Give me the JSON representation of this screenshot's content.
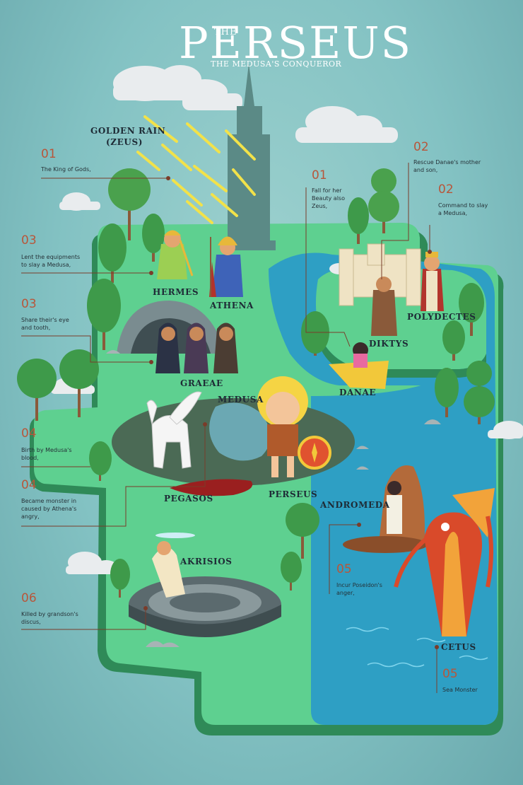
{
  "title": {
    "the": "THE",
    "main": "PERSEUS",
    "subtitle": "THE MEDUSA'S CONQUEROR"
  },
  "labels": {
    "golden_rain": "GOLDEN RAIN",
    "zeus": "(ZEUS)",
    "hermes": "HERMES",
    "athena": "ATHENA",
    "graeae": "GRAEAE",
    "medusa": "MEDUSA",
    "pegasos": "PEGASOS",
    "perseus": "PERSEUS",
    "diktys": "DIKTYS",
    "polydectes": "POLYDECTES",
    "danae": "DANAE",
    "andromeda": "ANDROMEDA",
    "akrisios": "AKRISIOS",
    "cetus": "CETUS"
  },
  "notes": {
    "zeus_01": {
      "num": "01",
      "text": "The King of Gods,"
    },
    "gifts_03": {
      "num": "03",
      "text": "Lent the equipments\nto slay a Medusa,"
    },
    "graeae_03": {
      "num": "03",
      "text": "Share their's eye\nand tooth,"
    },
    "pegasos_04a": {
      "num": "04",
      "text": "Birth by Medusa's\nblood,"
    },
    "medusa_04b": {
      "num": "04",
      "text": "Became monster in\ncaused by Athena's\nangry,"
    },
    "akrisios_06": {
      "num": "06",
      "text": "Killed by grandson's\ndiscus,"
    },
    "zeus_danae_01": {
      "num": "01",
      "text": "Fall for her\nBeauty also\nZeus,"
    },
    "diktys_02": {
      "num": "02",
      "text": "Rescue Danae's mother\nand son,"
    },
    "polydectes_02": {
      "num": "02",
      "text": "Command to slay\na Medusa,"
    },
    "andromeda_05": {
      "num": "05",
      "text": "Incur Poseidon's\nanger,"
    },
    "cetus_05": {
      "num": "05",
      "text": "Sea Monster"
    }
  },
  "colors": {
    "sky": "#83c2c3",
    "land": "#5ed090",
    "land_dark": "#2f8a58",
    "sea": "#2e9fc4",
    "accent": "#b8563a",
    "gold": "#f2e24a"
  }
}
